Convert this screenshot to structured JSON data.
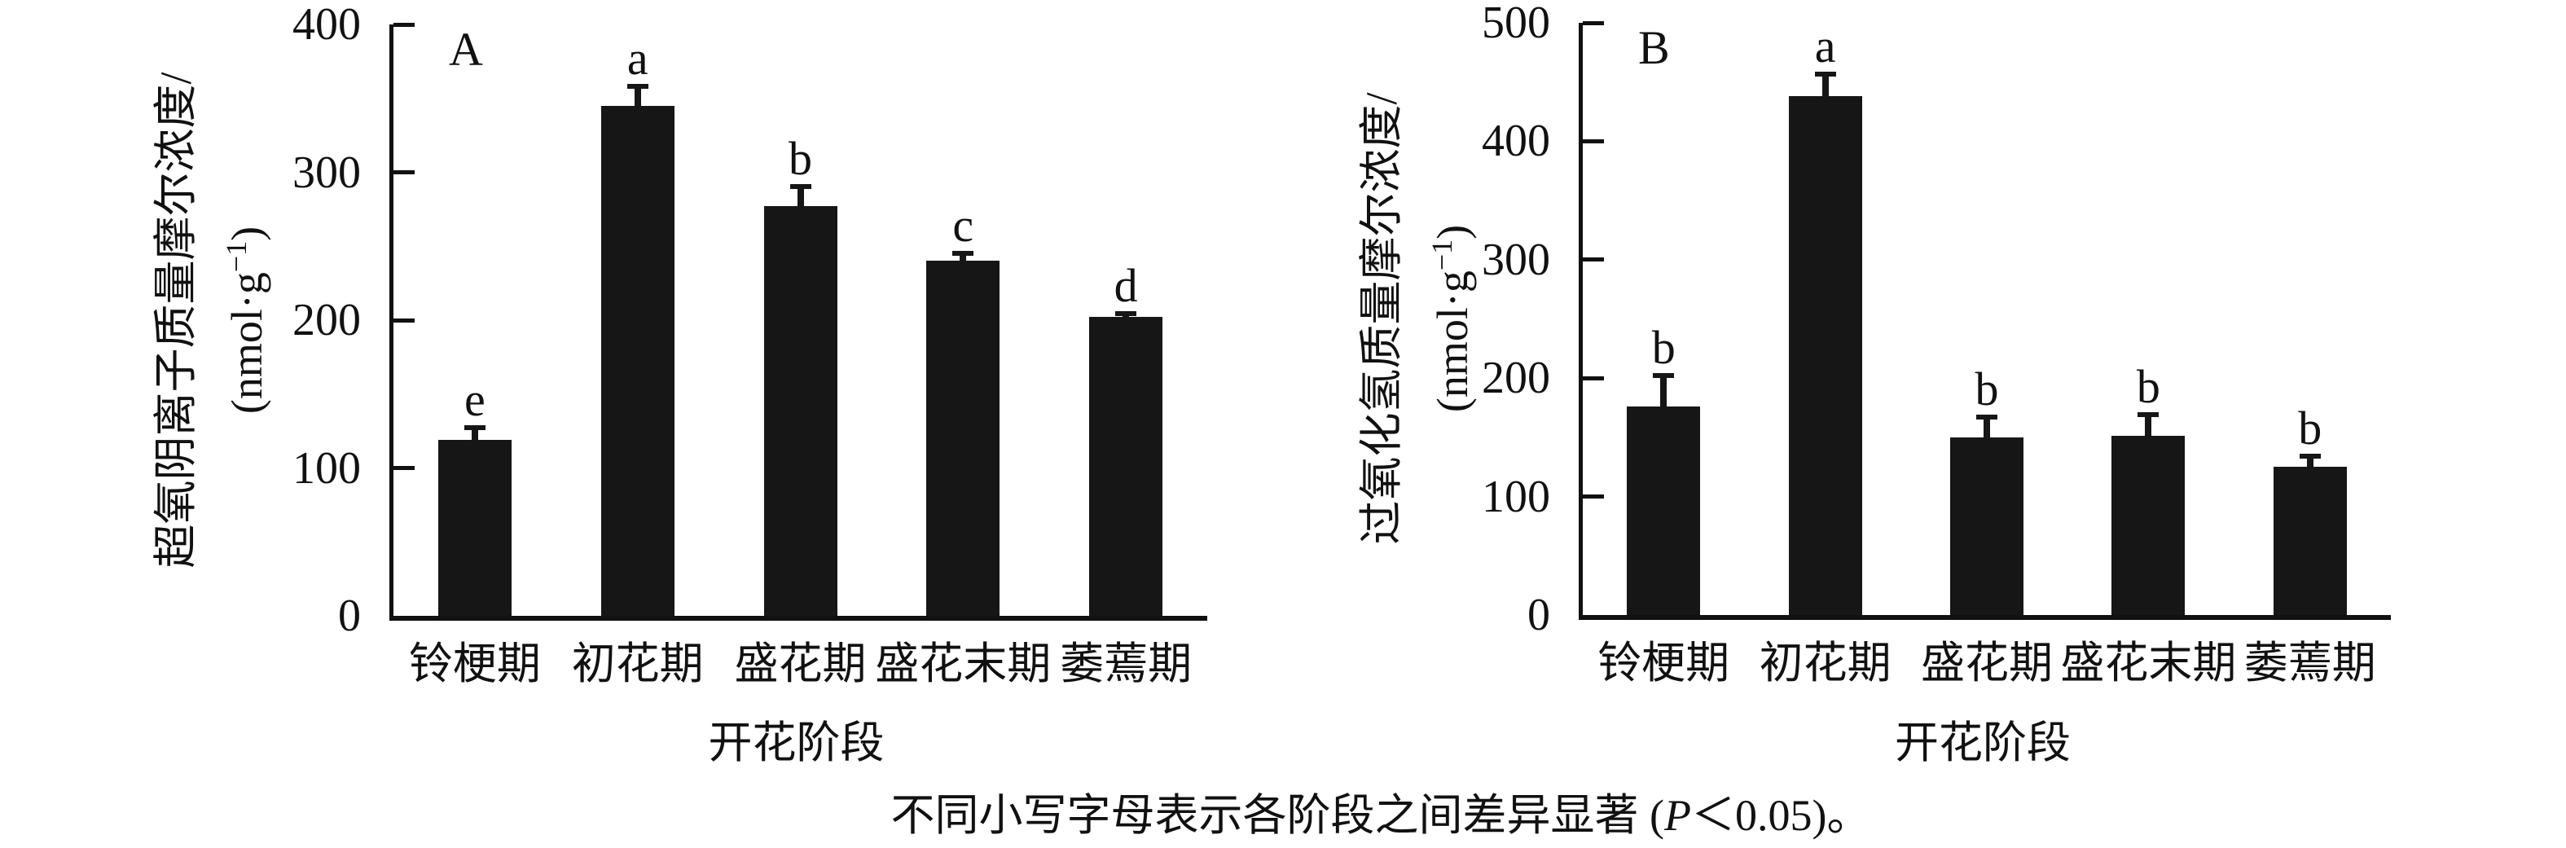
{
  "figure": {
    "caption_prefix": "不同小写字母表示各阶段之间差异显著 (",
    "caption_p": "P",
    "caption_suffix": "＜0.05)。"
  },
  "chart_data": [
    {
      "type": "bar",
      "panel_label": "A",
      "ylabel_line1": "超氧阴离子质量摩尔浓度/",
      "unit_pre": "(nmol·g",
      "unit_sup": "−1",
      "unit_post": ")",
      "xlabel": "开花阶段",
      "categories": [
        "铃梗期",
        "初花期",
        "盛花期",
        "盛花末期",
        "萎蔫期"
      ],
      "values": [
        119,
        345,
        277,
        240,
        202
      ],
      "errors": [
        10,
        15,
        15,
        7,
        4
      ],
      "sig_letters": [
        "e",
        "a",
        "b",
        "c",
        "d"
      ],
      "ylim": [
        0,
        400
      ],
      "yticks": [
        0,
        100,
        200,
        300,
        400
      ],
      "grid": false,
      "legend": false,
      "bar_color": "#161616"
    },
    {
      "type": "bar",
      "panel_label": "B",
      "ylabel_line1": "过氧化氢质量摩尔浓度/",
      "unit_pre": "(nmol·g",
      "unit_sup": "−1",
      "unit_post": ")",
      "xlabel": "开花阶段",
      "categories": [
        "铃梗期",
        "初花期",
        "盛花期",
        "盛花末期",
        "萎蔫期"
      ],
      "values": [
        176,
        438,
        150,
        151,
        125
      ],
      "errors": [
        28,
        21,
        19,
        20,
        11
      ],
      "sig_letters": [
        "b",
        "a",
        "b",
        "b",
        "b"
      ],
      "ylim": [
        0,
        500
      ],
      "yticks": [
        0,
        100,
        200,
        300,
        400,
        500
      ],
      "grid": false,
      "legend": false,
      "bar_color": "#161616"
    }
  ]
}
